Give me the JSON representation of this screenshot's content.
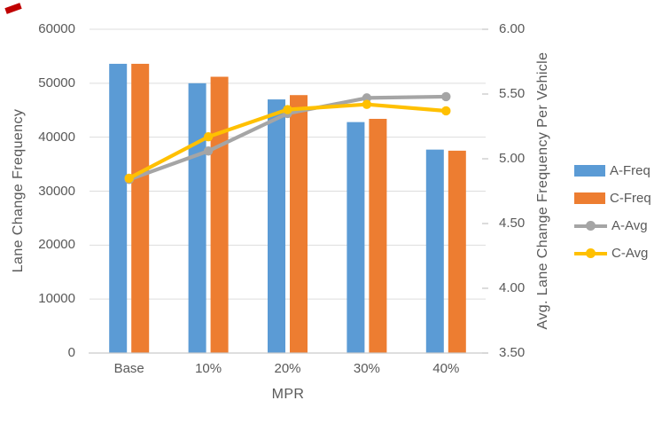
{
  "chart_data": {
    "type": "combo-bar-line",
    "categories": [
      "Base",
      "10%",
      "20%",
      "30%",
      "40%"
    ],
    "series": [
      {
        "name": "A-Freq",
        "chart": "bar",
        "axis": "left",
        "color": "#5B9BD5",
        "values": [
          53600,
          50000,
          47000,
          42800,
          37700
        ]
      },
      {
        "name": "C-Freq",
        "chart": "bar",
        "axis": "left",
        "color": "#ED7D31",
        "values": [
          53600,
          51200,
          47800,
          43400,
          37500
        ]
      },
      {
        "name": "A-Avg",
        "chart": "line",
        "axis": "right",
        "color": "#A5A5A5",
        "values": [
          4.84,
          5.06,
          5.35,
          5.47,
          5.48
        ]
      },
      {
        "name": "C-Avg",
        "chart": "line",
        "axis": "right",
        "color": "#FFC000",
        "values": [
          4.85,
          5.17,
          5.38,
          5.42,
          5.37
        ]
      }
    ],
    "x_axis": {
      "title": "MPR"
    },
    "y_left": {
      "title": "Lane Change Frequency",
      "min": 0,
      "max": 60000,
      "tick_step": 10000,
      "tick_labels": [
        "0",
        "10000",
        "20000",
        "30000",
        "40000",
        "50000",
        "60000"
      ]
    },
    "y_right": {
      "title": "Avg. Lane Change Frequency Per Vehicle",
      "min": 3.5,
      "max": 6.0,
      "tick_step": 0.5,
      "tick_labels": [
        "3.50",
        "4.00",
        "4.50",
        "5.00",
        "5.50",
        "6.00"
      ]
    },
    "legend": {
      "position": "right",
      "entries": [
        "A-Freq",
        "C-Freq",
        "A-Avg",
        "C-Avg"
      ]
    },
    "grid": true,
    "colors": {
      "gridline": "#DDDDDD",
      "axis_line": "#C9C9C9",
      "text": "#595959"
    }
  },
  "decoration": {
    "corner_mark_color": "#C00000"
  }
}
